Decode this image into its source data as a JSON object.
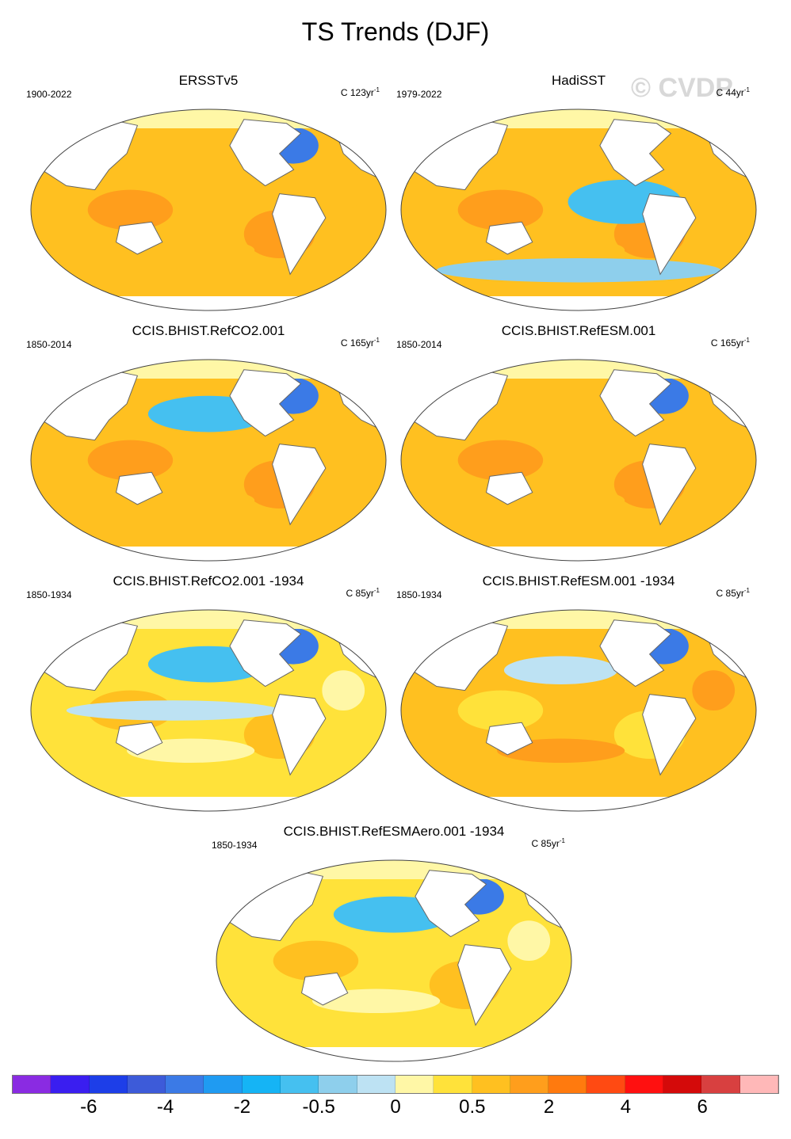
{
  "figure": {
    "title": "TS Trends (DJF)",
    "watermark": "© CVDP"
  },
  "chart_data": [
    {
      "type": "heatmap",
      "title": "ERSSTv5",
      "years": "1900-2022",
      "units": "C 123yr",
      "units_exp": "-1",
      "dominant": "orange",
      "anomalies": [
        "north-atlantic-blue"
      ]
    },
    {
      "type": "heatmap",
      "title": "HadiSST",
      "years": "1979-2022",
      "units": "C 44yr",
      "units_exp": "-1",
      "dominant": "orange",
      "anomalies": [
        "east-pacific-blue",
        "southern-ocean-blue"
      ]
    },
    {
      "type": "heatmap",
      "title": "CCIS.BHIST.RefCO2.001",
      "years": "1850-2014",
      "units": "C 165yr",
      "units_exp": "-1",
      "dominant": "orange",
      "anomalies": [
        "north-pacific-blue",
        "north-atlantic-blue"
      ]
    },
    {
      "type": "heatmap",
      "title": "CCIS.BHIST.RefESM.001",
      "years": "1850-2014",
      "units": "C 165yr",
      "units_exp": "-1",
      "dominant": "orange",
      "anomalies": [
        "north-atlantic-blue"
      ]
    },
    {
      "type": "heatmap",
      "title": "CCIS.BHIST.RefCO2.001 -1934",
      "years": "1850-1934",
      "units": "C 85yr",
      "units_exp": "-1",
      "dominant": "yellow",
      "anomalies": [
        "north-pacific-blue",
        "north-atlantic-blue",
        "tropics-lightblue"
      ]
    },
    {
      "type": "heatmap",
      "title": "CCIS.BHIST.RefESM.001 -1934",
      "years": "1850-1934",
      "units": "C 85yr",
      "units_exp": "-1",
      "dominant": "yellow-orange",
      "anomalies": [
        "north-atlantic-blue",
        "north-pacific-lightblue"
      ]
    },
    {
      "type": "heatmap",
      "title": "CCIS.BHIST.RefESMAero.001 -1934",
      "years": "1850-1934",
      "units": "C 85yr",
      "units_exp": "-1",
      "dominant": "yellow",
      "anomalies": [
        "north-pacific-blue",
        "north-atlantic-blue"
      ]
    }
  ],
  "colorbar": {
    "colors": [
      "#8a2be2",
      "#3a1ef0",
      "#1d3ee8",
      "#3d5bd9",
      "#3b7ae6",
      "#1f9bf2",
      "#15b4f5",
      "#45c0f0",
      "#8ecfec",
      "#bde2f3",
      "#fff7a6",
      "#ffe23a",
      "#ffc020",
      "#ff9e1c",
      "#ff7a0e",
      "#ff4a12",
      "#ff1010",
      "#d40a0a",
      "#d84040",
      "#ffb8b8"
    ],
    "labels": [
      "-6",
      "-4",
      "-2",
      "-0.5",
      "0",
      "0.5",
      "2",
      "4",
      "6"
    ],
    "label_after_cell": [
      2,
      4,
      6,
      8,
      10,
      12,
      14,
      16,
      18
    ]
  }
}
